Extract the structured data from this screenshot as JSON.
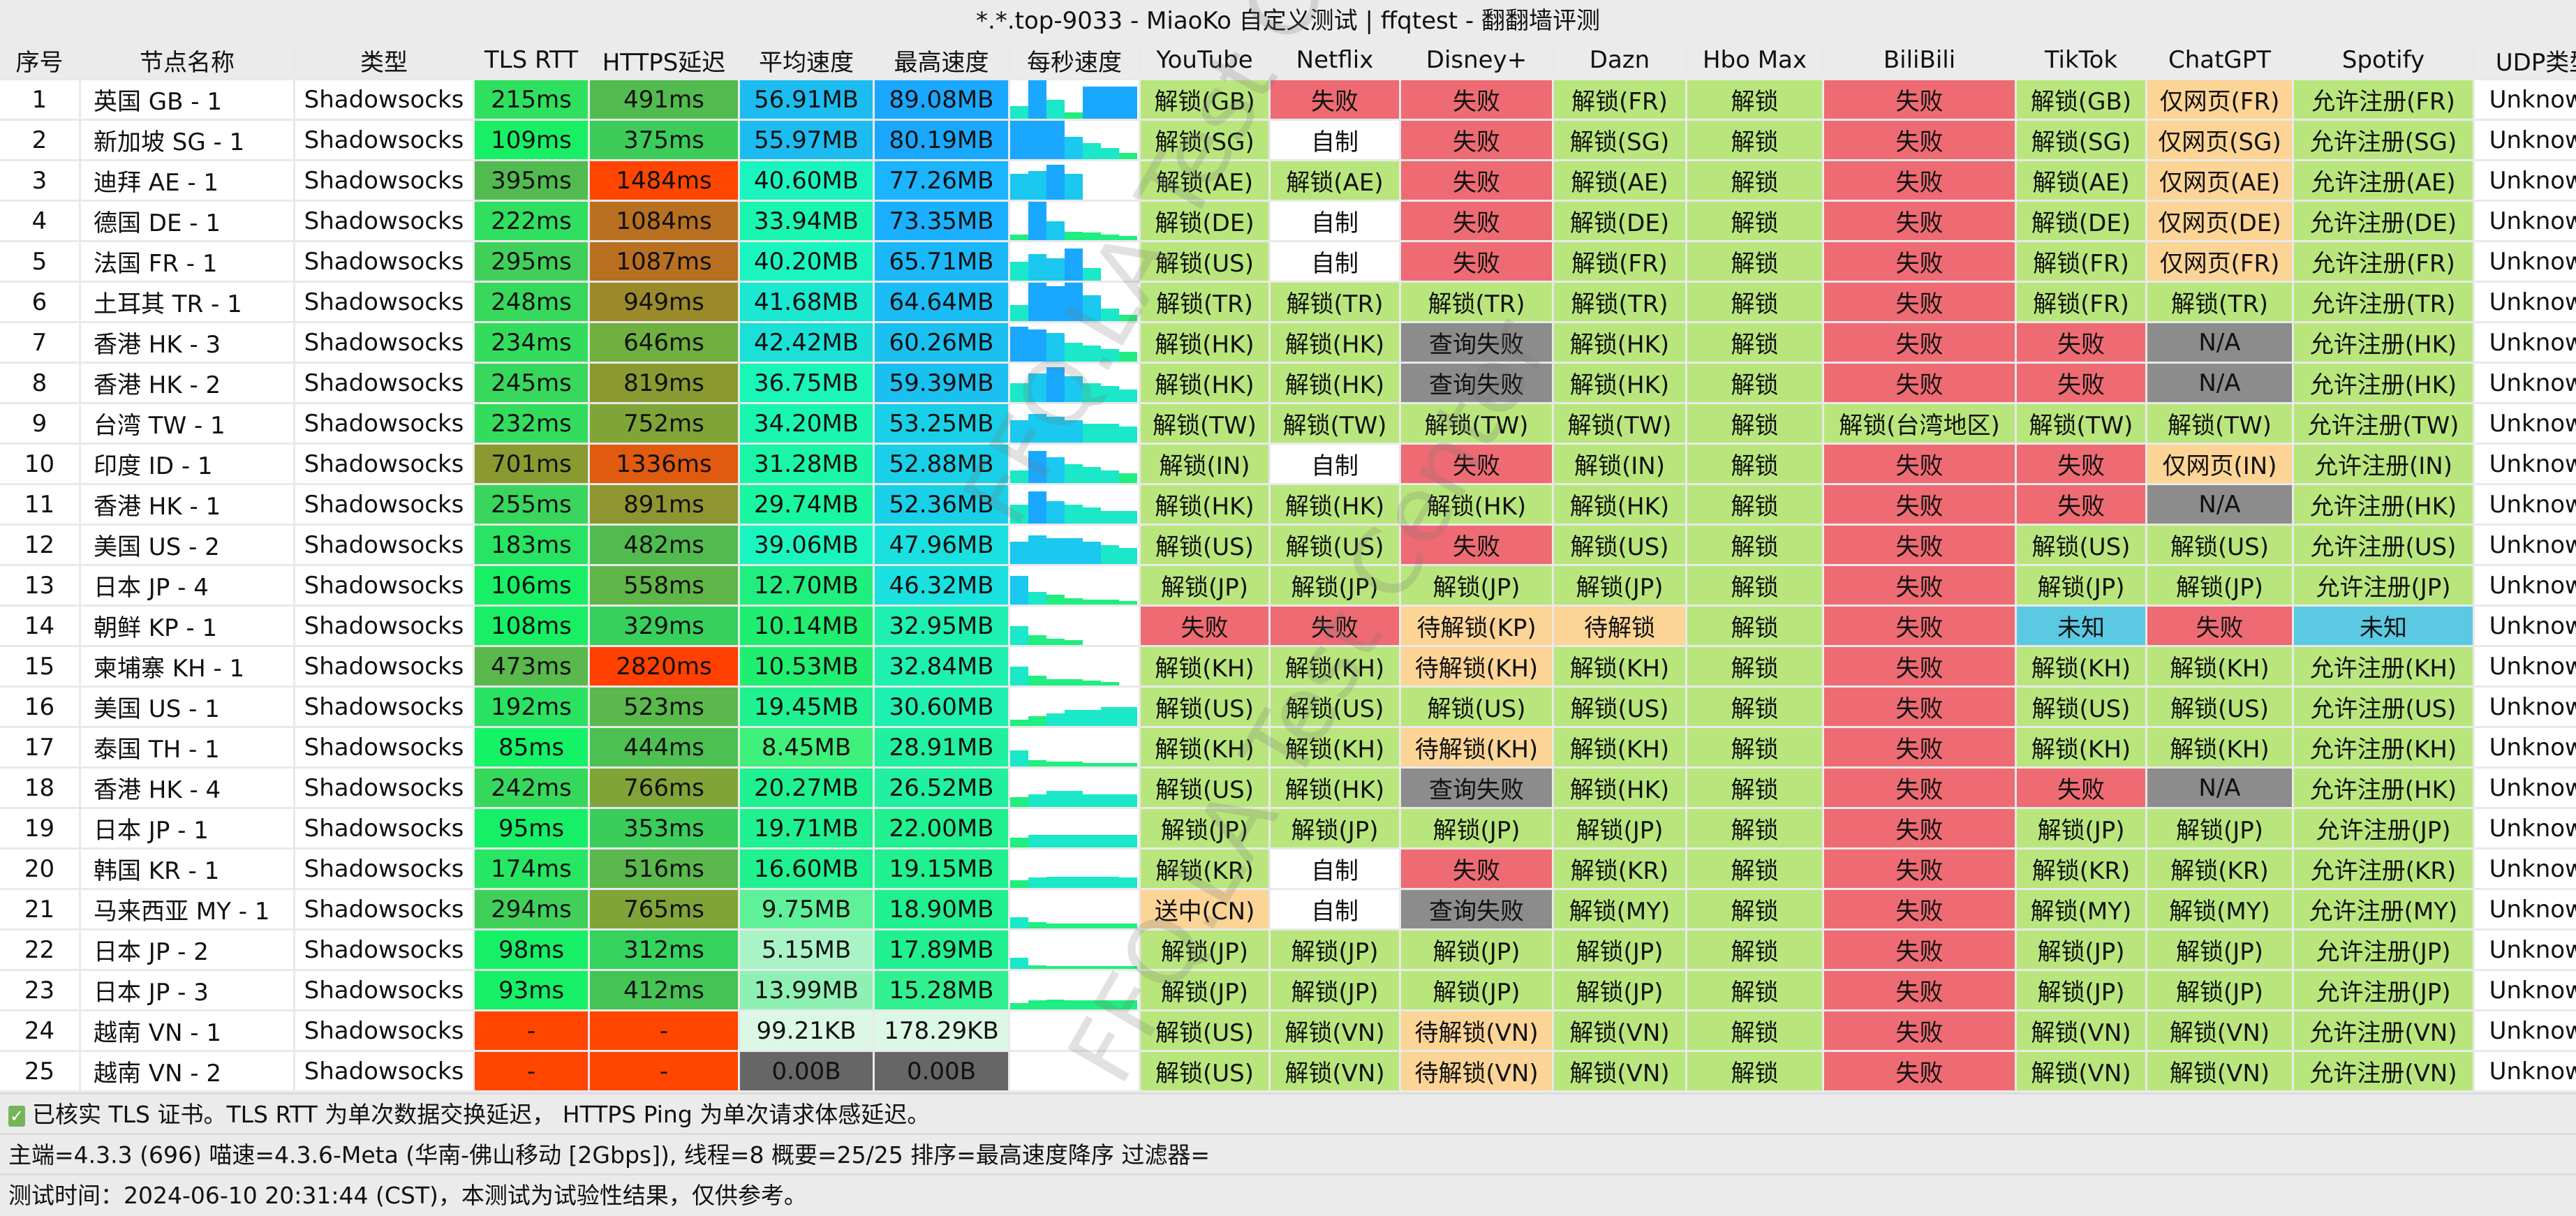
{
  "title": "*.*.top-9033 - MiaoKo 自定义测试 | ffqtest - 翻翻墙评测",
  "watermark": "FFQ.LA Test Center",
  "columns": [
    "序号",
    "节点名称",
    "类型",
    "TLS RTT",
    "HTTPS延迟",
    "平均速度",
    "最高速度",
    "每秒速度",
    "YouTube",
    "Netflix",
    "Disney+",
    "Dazn",
    "Hbo Max",
    "BiliBili",
    "TikTok",
    "ChatGPT",
    "Spotify",
    "UDP类型"
  ],
  "status_colors": {
    "unlock": "#b9e67c",
    "fail": "#ee6b73",
    "self": "#ffffff",
    "queryfail": "#8c8c8c",
    "pending": "#fcd496",
    "unknown_cn": "#5bc9e2",
    "unknown": "#ffffff"
  },
  "rows": [
    {
      "id": "1",
      "name": "英国 GB - 1",
      "type": "Shadowsocks",
      "tls": "215ms",
      "tls_color": "#2fe05f",
      "https": "491ms",
      "https_color": "#52bb4f",
      "avg": "56.91MB",
      "avg_color": "#1cbcf0",
      "max": "89.08MB",
      "max_color": "#1aa8ff",
      "per_sec": [
        20,
        60,
        30,
        10,
        50,
        50,
        50
      ],
      "unlock": [
        "解锁(GB)",
        "失败",
        "失败",
        "解锁(FR)",
        "解锁",
        "失败",
        "解锁(GB)",
        "仅网页(FR)",
        "允许注册(FR)",
        "Unknown"
      ]
    },
    {
      "id": "2",
      "name": "新加坡 SG - 1",
      "type": "Shadowsocks",
      "tls": "109ms",
      "tls_color": "#18ef64",
      "https": "375ms",
      "https_color": "#3dcc5a",
      "avg": "55.97MB",
      "avg_color": "#1cbcf0",
      "max": "80.19MB",
      "max_color": "#1aa8ff",
      "per_sec": [
        60,
        60,
        60,
        35,
        25,
        18,
        10
      ],
      "unlock": [
        "解锁(SG)",
        "自制",
        "失败",
        "解锁(SG)",
        "解锁",
        "失败",
        "解锁(SG)",
        "仅网页(SG)",
        "允许注册(SG)",
        "Unknown"
      ]
    },
    {
      "id": "3",
      "name": "迪拜 AE - 1",
      "type": "Shadowsocks",
      "tls": "395ms",
      "tls_color": "#52bb4f",
      "https": "1484ms",
      "https_color": "#ff4500",
      "avg": "40.60MB",
      "avg_color": "#1af5c0",
      "max": "77.26MB",
      "max_color": "#1ab4ff",
      "per_sec": [
        40,
        45,
        55,
        40,
        0,
        0,
        0
      ],
      "unlock": [
        "解锁(AE)",
        "解锁(AE)",
        "失败",
        "解锁(AE)",
        "解锁",
        "失败",
        "解锁(AE)",
        "仅网页(AE)",
        "允许注册(AE)",
        "Unknown"
      ]
    },
    {
      "id": "4",
      "name": "德国 DE - 1",
      "type": "Shadowsocks",
      "tls": "222ms",
      "tls_color": "#30df60",
      "https": "1084ms",
      "https_color": "#b87020",
      "avg": "33.94MB",
      "avg_color": "#1af5b0",
      "max": "73.35MB",
      "max_color": "#1ab0ff",
      "per_sec": [
        10,
        70,
        35,
        15,
        14,
        10,
        8
      ],
      "unlock": [
        "解锁(DE)",
        "自制",
        "失败",
        "解锁(DE)",
        "解锁",
        "失败",
        "解锁(DE)",
        "仅网页(DE)",
        "允许注册(DE)",
        "Unknown"
      ]
    },
    {
      "id": "5",
      "name": "法国 FR - 1",
      "type": "Shadowsocks",
      "tls": "295ms",
      "tls_color": "#40d05a",
      "https": "1087ms",
      "https_color": "#b87020",
      "avg": "40.20MB",
      "avg_color": "#1af5c0",
      "max": "65.71MB",
      "max_color": "#1ab8f8",
      "per_sec": [
        30,
        42,
        35,
        50,
        20,
        0,
        0
      ],
      "unlock": [
        "解锁(US)",
        "自制",
        "失败",
        "解锁(FR)",
        "解锁",
        "失败",
        "解锁(FR)",
        "仅网页(FR)",
        "允许注册(FR)",
        "Unknown"
      ]
    },
    {
      "id": "6",
      "name": "土耳其 TR - 1",
      "type": "Shadowsocks",
      "tls": "248ms",
      "tls_color": "#38d85c",
      "https": "949ms",
      "https_color": "#9a8a2a",
      "avg": "41.68MB",
      "avg_color": "#1ae8d0",
      "max": "64.64MB",
      "max_color": "#1abcf5",
      "per_sec": [
        25,
        60,
        55,
        60,
        40,
        20,
        10
      ],
      "unlock": [
        "解锁(TR)",
        "解锁(TR)",
        "解锁(TR)",
        "解锁(TR)",
        "解锁",
        "失败",
        "解锁(FR)",
        "解锁(TR)",
        "允许注册(TR)",
        "Unknown"
      ]
    },
    {
      "id": "7",
      "name": "香港 HK - 3",
      "type": "Shadowsocks",
      "tls": "234ms",
      "tls_color": "#34dc5e",
      "https": "646ms",
      "https_color": "#6fb040",
      "avg": "42.42MB",
      "avg_color": "#1ae0d8",
      "max": "60.26MB",
      "max_color": "#1ac0f0",
      "per_sec": [
        55,
        50,
        45,
        30,
        25,
        20,
        15
      ],
      "unlock": [
        "解锁(HK)",
        "解锁(HK)",
        "查询失败",
        "解锁(HK)",
        "解锁",
        "失败",
        "失败",
        "N/A",
        "允许注册(HK)",
        "Unknown"
      ]
    },
    {
      "id": "8",
      "name": "香港 HK - 2",
      "type": "Shadowsocks",
      "tls": "245ms",
      "tls_color": "#38d85c",
      "https": "819ms",
      "https_color": "#8a9a30",
      "avg": "36.75MB",
      "avg_color": "#1af5b8",
      "max": "59.39MB",
      "max_color": "#1ac0f0",
      "per_sec": [
        30,
        45,
        55,
        40,
        30,
        25,
        20
      ],
      "unlock": [
        "解锁(HK)",
        "解锁(HK)",
        "查询失败",
        "解锁(HK)",
        "解锁",
        "失败",
        "失败",
        "N/A",
        "允许注册(HK)",
        "Unknown"
      ]
    },
    {
      "id": "9",
      "name": "台湾 TW - 1",
      "type": "Shadowsocks",
      "tls": "232ms",
      "tls_color": "#34dc5e",
      "https": "752ms",
      "https_color": "#7fa538",
      "avg": "34.20MB",
      "avg_color": "#1af5b0",
      "max": "53.25MB",
      "max_color": "#1ad0e8",
      "per_sec": [
        35,
        45,
        40,
        35,
        30,
        30,
        25
      ],
      "unlock": [
        "解锁(TW)",
        "解锁(TW)",
        "解锁(TW)",
        "解锁(TW)",
        "解锁",
        "解锁(台湾地区)",
        "解锁(TW)",
        "解锁(TW)",
        "允许注册(TW)",
        "Unknown"
      ]
    },
    {
      "id": "10",
      "name": "印度 ID - 1",
      "type": "Shadowsocks",
      "tls": "701ms",
      "tls_color": "#8a9a30",
      "https": "1336ms",
      "https_color": "#e05a10",
      "avg": "31.28MB",
      "avg_color": "#1af5a8",
      "max": "52.88MB",
      "max_color": "#1ad0e8",
      "per_sec": [
        20,
        50,
        40,
        30,
        25,
        20,
        15
      ],
      "unlock": [
        "解锁(IN)",
        "自制",
        "失败",
        "解锁(IN)",
        "解锁",
        "失败",
        "失败",
        "仅网页(IN)",
        "允许注册(IN)",
        "Unknown"
      ]
    },
    {
      "id": "11",
      "name": "香港 HK - 1",
      "type": "Shadowsocks",
      "tls": "255ms",
      "tls_color": "#3ad55c",
      "https": "891ms",
      "https_color": "#8f9530",
      "avg": "29.74MB",
      "avg_color": "#1af5a0",
      "max": "52.36MB",
      "max_color": "#1ad0e8",
      "per_sec": [
        30,
        50,
        35,
        30,
        25,
        20,
        20
      ],
      "unlock": [
        "解锁(HK)",
        "解锁(HK)",
        "解锁(HK)",
        "解锁(HK)",
        "解锁",
        "失败",
        "失败",
        "N/A",
        "允许注册(HK)",
        "Unknown"
      ]
    },
    {
      "id": "12",
      "name": "美国 US - 2",
      "type": "Shadowsocks",
      "tls": "183ms",
      "tls_color": "#28e462",
      "https": "482ms",
      "https_color": "#52bb4f",
      "avg": "39.06MB",
      "avg_color": "#1af5c0",
      "max": "47.96MB",
      "max_color": "#1ae0e0",
      "per_sec": [
        35,
        45,
        40,
        40,
        35,
        30,
        25
      ],
      "unlock": [
        "解锁(US)",
        "解锁(US)",
        "失败",
        "解锁(US)",
        "解锁",
        "失败",
        "解锁(US)",
        "解锁(US)",
        "允许注册(US)",
        "Unknown"
      ]
    },
    {
      "id": "13",
      "name": "日本 JP - 4",
      "type": "Shadowsocks",
      "tls": "106ms",
      "tls_color": "#18ef64",
      "https": "558ms",
      "https_color": "#60b548",
      "avg": "12.70MB",
      "avg_color": "#20ef80",
      "max": "46.32MB",
      "max_color": "#1ae0e0",
      "per_sec": [
        45,
        20,
        15,
        10,
        8,
        8,
        5
      ],
      "unlock": [
        "解锁(JP)",
        "解锁(JP)",
        "解锁(JP)",
        "解锁(JP)",
        "解锁",
        "失败",
        "解锁(JP)",
        "解锁(JP)",
        "允许注册(JP)",
        "Unknown"
      ]
    },
    {
      "id": "14",
      "name": "朝鲜 KP - 1",
      "type": "Shadowsocks",
      "tls": "108ms",
      "tls_color": "#18ef64",
      "https": "329ms",
      "https_color": "#38d05c",
      "avg": "10.14MB",
      "avg_color": "#20ee70",
      "max": "32.95MB",
      "max_color": "#1ef0b0",
      "per_sec": [
        30,
        15,
        10,
        8,
        0,
        0,
        0
      ],
      "unlock": [
        "失败",
        "失败",
        "待解锁(KP)",
        "待解锁",
        "解锁",
        "失败",
        "未知",
        "失败",
        "未知",
        "Unknown"
      ]
    },
    {
      "id": "15",
      "name": "柬埔寨 KH - 1",
      "type": "Shadowsocks",
      "tls": "473ms",
      "tls_color": "#5ab84c",
      "https": "2820ms",
      "https_color": "#ff4000",
      "avg": "10.53MB",
      "avg_color": "#20ee70",
      "max": "32.84MB",
      "max_color": "#1ef0b0",
      "per_sec": [
        30,
        15,
        10,
        10,
        8,
        5,
        0
      ],
      "unlock": [
        "解锁(KH)",
        "解锁(KH)",
        "待解锁(KH)",
        "解锁(KH)",
        "解锁",
        "失败",
        "解锁(KH)",
        "解锁(KH)",
        "允许注册(KH)",
        "Unknown"
      ]
    },
    {
      "id": "16",
      "name": "美国 US - 1",
      "type": "Shadowsocks",
      "tls": "192ms",
      "tls_color": "#2ae262",
      "https": "523ms",
      "https_color": "#5ab84c",
      "avg": "19.45MB",
      "avg_color": "#1ff090",
      "max": "30.60MB",
      "max_color": "#1ef0b0",
      "per_sec": [
        10,
        15,
        20,
        25,
        25,
        30,
        30
      ],
      "unlock": [
        "解锁(US)",
        "解锁(US)",
        "解锁(US)",
        "解锁(US)",
        "解锁",
        "失败",
        "解锁(US)",
        "解锁(US)",
        "允许注册(US)",
        "Unknown"
      ]
    },
    {
      "id": "17",
      "name": "泰国 TH - 1",
      "type": "Shadowsocks",
      "tls": "85ms",
      "tls_color": "#14f266",
      "https": "444ms",
      "https_color": "#4cc050",
      "avg": "8.45MB",
      "avg_color": "#3ff07a",
      "max": "28.91MB",
      "max_color": "#20f0a0",
      "per_sec": [
        25,
        10,
        8,
        8,
        6,
        5,
        5
      ],
      "unlock": [
        "解锁(KH)",
        "解锁(KH)",
        "待解锁(KH)",
        "解锁(KH)",
        "解锁",
        "失败",
        "解锁(KH)",
        "解锁(KH)",
        "允许注册(KH)",
        "Unknown"
      ]
    },
    {
      "id": "18",
      "name": "香港 HK - 4",
      "type": "Shadowsocks",
      "tls": "242ms",
      "tls_color": "#36d85c",
      "https": "766ms",
      "https_color": "#80a438",
      "avg": "20.27MB",
      "avg_color": "#1ff090",
      "max": "26.52MB",
      "max_color": "#20f0a0",
      "per_sec": [
        15,
        20,
        25,
        25,
        20,
        20,
        20
      ],
      "unlock": [
        "解锁(US)",
        "解锁(HK)",
        "查询失败",
        "解锁(HK)",
        "解锁",
        "失败",
        "失败",
        "N/A",
        "允许注册(HK)",
        "Unknown"
      ]
    },
    {
      "id": "19",
      "name": "日本 JP - 1",
      "type": "Shadowsocks",
      "tls": "95ms",
      "tls_color": "#16f066",
      "https": "353ms",
      "https_color": "#3acd5c",
      "avg": "19.71MB",
      "avg_color": "#1ff090",
      "max": "22.00MB",
      "max_color": "#20f090",
      "per_sec": [
        15,
        20,
        20,
        20,
        20,
        20,
        20
      ],
      "unlock": [
        "解锁(JP)",
        "解锁(JP)",
        "解锁(JP)",
        "解锁(JP)",
        "解锁",
        "失败",
        "解锁(JP)",
        "解锁(JP)",
        "允许注册(JP)",
        "Unknown"
      ]
    },
    {
      "id": "20",
      "name": "韩国 KR - 1",
      "type": "Shadowsocks",
      "tls": "174ms",
      "tls_color": "#26e663",
      "https": "516ms",
      "https_color": "#5ab84c",
      "avg": "16.60MB",
      "avg_color": "#1ff090",
      "max": "19.15MB",
      "max_color": "#20f090",
      "per_sec": [
        12,
        16,
        18,
        18,
        17,
        17,
        16
      ],
      "unlock": [
        "解锁(KR)",
        "自制",
        "失败",
        "解锁(KR)",
        "解锁",
        "失败",
        "解锁(KR)",
        "解锁(KR)",
        "允许注册(KR)",
        "Unknown"
      ]
    },
    {
      "id": "21",
      "name": "马来西亚 MY - 1",
      "type": "Shadowsocks",
      "tls": "294ms",
      "tls_color": "#40d05a",
      "https": "765ms",
      "https_color": "#80a438",
      "avg": "9.75MB",
      "avg_color": "#5ff09a",
      "max": "18.90MB",
      "max_color": "#20f090",
      "per_sec": [
        18,
        10,
        8,
        8,
        8,
        8,
        8
      ],
      "unlock": [
        "送中(CN)",
        "自制",
        "查询失败",
        "解锁(MY)",
        "解锁",
        "失败",
        "解锁(MY)",
        "解锁(MY)",
        "允许注册(MY)",
        "Unknown"
      ]
    },
    {
      "id": "22",
      "name": "日本 JP - 2",
      "type": "Shadowsocks",
      "tls": "98ms",
      "tls_color": "#16f066",
      "https": "312ms",
      "https_color": "#36d25e",
      "avg": "5.15MB",
      "avg_color": "#aaf3c6",
      "max": "17.89MB",
      "max_color": "#20f090",
      "per_sec": [
        17,
        5,
        4,
        4,
        4,
        4,
        4
      ],
      "unlock": [
        "解锁(JP)",
        "解锁(JP)",
        "解锁(JP)",
        "解锁(JP)",
        "解锁",
        "失败",
        "解锁(JP)",
        "解锁(JP)",
        "允许注册(JP)",
        "Unknown"
      ]
    },
    {
      "id": "23",
      "name": "日本 JP - 3",
      "type": "Shadowsocks",
      "tls": "93ms",
      "tls_color": "#16f066",
      "https": "412ms",
      "https_color": "#45c455",
      "avg": "13.99MB",
      "avg_color": "#8ff0b4",
      "max": "15.28MB",
      "max_color": "#30f090",
      "per_sec": [
        10,
        14,
        15,
        14,
        14,
        14,
        14
      ],
      "unlock": [
        "解锁(JP)",
        "解锁(JP)",
        "解锁(JP)",
        "解锁(JP)",
        "解锁",
        "失败",
        "解锁(JP)",
        "解锁(JP)",
        "允许注册(JP)",
        "Unknown"
      ]
    },
    {
      "id": "24",
      "name": "越南 VN - 1",
      "type": "Shadowsocks",
      "tls": "-",
      "tls_color": "#ff4500",
      "https": "-",
      "https_color": "#ff4500",
      "avg": "99.21KB",
      "avg_color": "#dcf7e6",
      "max": "178.29KB",
      "max_color": "#dcf7e6",
      "per_sec": [
        0,
        0,
        0,
        0,
        0,
        0,
        0
      ],
      "unlock": [
        "解锁(US)",
        "解锁(VN)",
        "待解锁(VN)",
        "解锁(VN)",
        "解锁",
        "失败",
        "解锁(VN)",
        "解锁(VN)",
        "允许注册(VN)",
        "Unknown"
      ]
    },
    {
      "id": "25",
      "name": "越南 VN - 2",
      "type": "Shadowsocks",
      "tls": "-",
      "tls_color": "#ff4500",
      "https": "-",
      "https_color": "#ff4500",
      "avg": "0.00B",
      "avg_color": "#666666",
      "max": "0.00B",
      "max_color": "#666666",
      "per_sec": [
        0,
        0,
        0,
        0,
        0,
        0,
        0
      ],
      "unlock": [
        "解锁(US)",
        "解锁(VN)",
        "待解锁(VN)",
        "解锁(VN)",
        "解锁",
        "失败",
        "解锁(VN)",
        "解锁(VN)",
        "允许注册(VN)",
        "Unknown"
      ]
    }
  ],
  "footer": {
    "note": "已核实 TLS 证书。TLS RTT 为单次数据交换延迟， HTTPS Ping 为单次请求体感延迟。",
    "info": "主端=4.3.3 (696) 喵速=4.3.6-Meta (华南-佛山移动 [2Gbps]), 线程=8 概要=25/25 排序=最高速度降序 过滤器=",
    "time": "测试时间：2024-06-10 20:31:44 (CST)，本测试为试验性结果，仅供参考。"
  }
}
